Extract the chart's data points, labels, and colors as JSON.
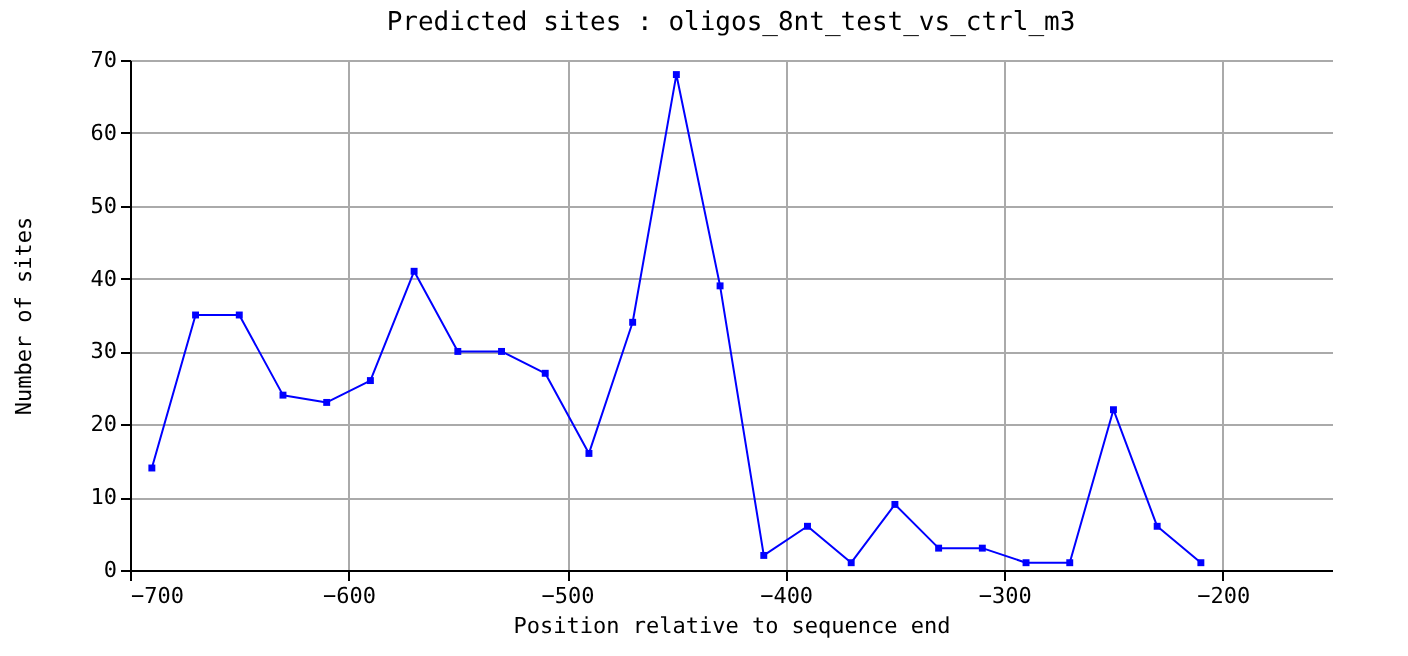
{
  "chart_data": {
    "type": "line",
    "title": "Predicted sites : oligos_8nt_test_vs_ctrl_m3",
    "xlabel": "Position relative to sequence end",
    "ylabel": "Number of sites",
    "x": [
      -690,
      -670,
      -650,
      -630,
      -610,
      -590,
      -570,
      -550,
      -530,
      -510,
      -490,
      -470,
      -450,
      -430,
      -410,
      -390,
      -370,
      -350,
      -330,
      -310,
      -290,
      -270,
      -250,
      -230,
      -210
    ],
    "series": [
      {
        "color": "#0000ff",
        "values": [
          14,
          35,
          35,
          24,
          23,
          26,
          41,
          30,
          30,
          27,
          16,
          34,
          68,
          39,
          2,
          6,
          1,
          9,
          3,
          3,
          1,
          1,
          22,
          6,
          1
        ]
      }
    ],
    "xlim": [
      -700,
      -150
    ],
    "xticks": [
      -700,
      -600,
      -500,
      -400,
      -300,
      -200
    ],
    "ylim": [
      0,
      70
    ],
    "yticks": [
      0,
      10,
      20,
      30,
      40,
      50,
      60,
      70
    ],
    "grid": true,
    "marker": "square",
    "line_style": "solid",
    "legend": false
  }
}
